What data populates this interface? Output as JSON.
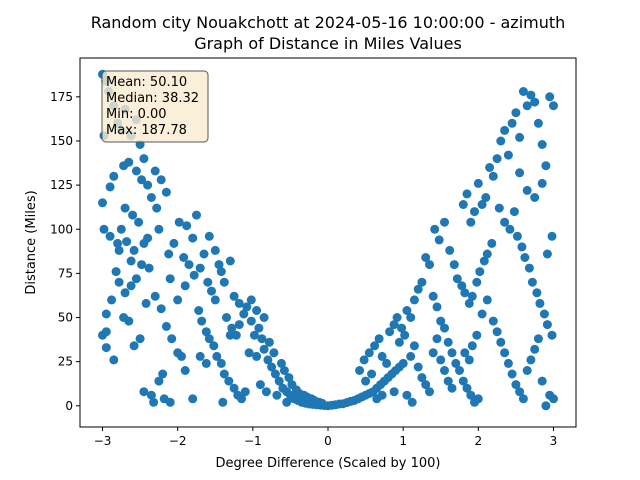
{
  "chart_data": {
    "type": "scatter",
    "title_line1": "Random city Nouakchott at 2024-05-16 10:00:00  - azimuth",
    "title_line2": "Graph of Distance in Miles Values",
    "xlabel": "Degree Difference (Scaled by 100)",
    "ylabel": "Distance (Miles)",
    "xlim": [
      -3.3,
      3.3
    ],
    "ylim": [
      -12,
      197
    ],
    "xticks": [
      -3,
      -2,
      -1,
      0,
      1,
      2,
      3
    ],
    "yticks": [
      0,
      25,
      50,
      75,
      100,
      125,
      150,
      175
    ],
    "marker_color": "#1f77b4",
    "stats_box": {
      "mean": "Mean: 50.10",
      "median": "Median: 38.32",
      "min": "Min: 0.00",
      "max": "Max: 187.78",
      "facecolor": "#f9ebd0"
    },
    "points": [
      [
        -3.0,
        187.78
      ],
      [
        -2.96,
        184.0
      ],
      [
        -2.98,
        153.0
      ],
      [
        -2.92,
        178.0
      ],
      [
        -2.85,
        170.0
      ],
      [
        -2.8,
        160.0
      ],
      [
        -2.75,
        156.0
      ],
      [
        -2.7,
        168.0
      ],
      [
        -2.62,
        153.0
      ],
      [
        -2.55,
        162.0
      ],
      [
        -2.5,
        148.0
      ],
      [
        -2.45,
        140.0
      ],
      [
        -3.0,
        115.0
      ],
      [
        -2.9,
        124.0
      ],
      [
        -2.85,
        130.0
      ],
      [
        -2.72,
        136.0
      ],
      [
        -2.65,
        138.0
      ],
      [
        -2.55,
        133.0
      ],
      [
        -2.48,
        128.0
      ],
      [
        -2.4,
        125.0
      ],
      [
        -2.3,
        133.0
      ],
      [
        -2.22,
        128.0
      ],
      [
        -2.15,
        121.0
      ],
      [
        -2.35,
        118.0
      ],
      [
        -2.28,
        112.0
      ],
      [
        -2.6,
        108.0
      ],
      [
        -2.52,
        104.0
      ],
      [
        -2.75,
        100.0
      ],
      [
        -2.68,
        93.0
      ],
      [
        -2.58,
        88.0
      ],
      [
        -2.45,
        92.0
      ],
      [
        -2.38,
        78.0
      ],
      [
        -2.82,
        76.0
      ],
      [
        -2.78,
        70.0
      ],
      [
        -2.7,
        64.0
      ],
      [
        -2.62,
        68.0
      ],
      [
        -2.55,
        72.0
      ],
      [
        -2.48,
        80.0
      ],
      [
        -2.42,
        58.0
      ],
      [
        -2.88,
        60.0
      ],
      [
        -2.95,
        52.0
      ],
      [
        -3.0,
        40.0
      ],
      [
        -2.95,
        33.0
      ],
      [
        -2.85,
        26.0
      ],
      [
        -2.72,
        50.0
      ],
      [
        -2.65,
        48.0
      ],
      [
        -2.58,
        34.0
      ],
      [
        -2.5,
        38.0
      ],
      [
        -2.45,
        8.0
      ],
      [
        -2.35,
        6.0
      ],
      [
        -2.32,
        2.0
      ],
      [
        -2.25,
        14.0
      ],
      [
        -2.2,
        18.0
      ],
      [
        -2.18,
        4.0
      ],
      [
        -2.1,
        2.0
      ],
      [
        -2.3,
        62.0
      ],
      [
        -2.22,
        55.0
      ],
      [
        -2.15,
        45.0
      ],
      [
        -2.08,
        38.0
      ],
      [
        -2.0,
        30.0
      ],
      [
        -1.95,
        28.0
      ],
      [
        -1.9,
        20.0
      ],
      [
        -2.12,
        86.0
      ],
      [
        -2.05,
        92.0
      ],
      [
        -1.98,
        104.0
      ],
      [
        -1.88,
        102.0
      ],
      [
        -1.8,
        95.0
      ],
      [
        -1.75,
        108.0
      ],
      [
        -1.92,
        84.0
      ],
      [
        -1.85,
        80.0
      ],
      [
        -1.78,
        74.0
      ],
      [
        -1.7,
        78.0
      ],
      [
        -1.65,
        86.0
      ],
      [
        -1.6,
        70.0
      ],
      [
        -1.55,
        65.0
      ],
      [
        -1.5,
        60.0
      ],
      [
        -1.45,
        80.0
      ],
      [
        -1.38,
        70.0
      ],
      [
        -1.3,
        82.0
      ],
      [
        -1.72,
        54.0
      ],
      [
        -1.68,
        48.0
      ],
      [
        -1.62,
        42.0
      ],
      [
        -1.58,
        38.0
      ],
      [
        -1.52,
        34.0
      ],
      [
        -1.48,
        28.0
      ],
      [
        -1.42,
        24.0
      ],
      [
        -1.38,
        18.0
      ],
      [
        -1.32,
        14.0
      ],
      [
        -1.25,
        10.0
      ],
      [
        -1.2,
        6.0
      ],
      [
        -1.15,
        4.0
      ],
      [
        -1.1,
        8.0
      ],
      [
        -1.8,
        4.0
      ],
      [
        -1.7,
        28.0
      ],
      [
        -1.62,
        24.0
      ],
      [
        -1.35,
        50.0
      ],
      [
        -1.28,
        44.0
      ],
      [
        -1.22,
        40.0
      ],
      [
        -1.18,
        46.0
      ],
      [
        -1.12,
        52.0
      ],
      [
        -1.08,
        56.0
      ],
      [
        -1.02,
        48.0
      ],
      [
        -0.98,
        40.0
      ],
      [
        -0.92,
        44.0
      ],
      [
        -0.88,
        38.0
      ],
      [
        -0.85,
        32.0
      ],
      [
        -0.8,
        26.0
      ],
      [
        -0.75,
        22.0
      ],
      [
        -0.7,
        18.0
      ],
      [
        -0.65,
        14.0
      ],
      [
        -0.6,
        10.0
      ],
      [
        -0.55,
        8.0
      ],
      [
        -0.5,
        6.0
      ],
      [
        -0.45,
        4.0
      ],
      [
        -0.4,
        3.0
      ],
      [
        -0.35,
        2.0
      ],
      [
        -0.3,
        1.5
      ],
      [
        -0.25,
        1.0
      ],
      [
        -0.2,
        0.8
      ],
      [
        -0.15,
        0.6
      ],
      [
        -0.1,
        0.4
      ],
      [
        -0.05,
        0.2
      ],
      [
        0.0,
        0.0
      ],
      [
        -1.05,
        30.0
      ],
      [
        -0.95,
        28.0
      ],
      [
        -0.78,
        36.0
      ],
      [
        -0.72,
        30.0
      ],
      [
        -0.62,
        24.0
      ],
      [
        -0.58,
        20.0
      ],
      [
        -0.52,
        16.0
      ],
      [
        -0.48,
        12.0
      ],
      [
        -0.42,
        9.0
      ],
      [
        -0.38,
        7.0
      ],
      [
        -0.32,
        6.0
      ],
      [
        -0.28,
        5.0
      ],
      [
        -0.22,
        4.0
      ],
      [
        -0.18,
        3.0
      ],
      [
        -0.12,
        2.0
      ],
      [
        -0.08,
        1.5
      ],
      [
        -0.9,
        12.0
      ],
      [
        -0.82,
        8.0
      ],
      [
        -0.68,
        6.0
      ],
      [
        -0.55,
        2.0
      ],
      [
        -1.4,
        2.0
      ],
      [
        -1.3,
        40.0
      ],
      [
        -2.4,
        95.0
      ],
      [
        -2.25,
        100.0
      ],
      [
        -2.62,
        82.0
      ],
      [
        -2.95,
        42.0
      ],
      [
        -2.8,
        92.0
      ],
      [
        -2.7,
        112.0
      ],
      [
        -2.1,
        72.0
      ],
      [
        -2.0,
        60.0
      ],
      [
        -1.9,
        68.0
      ],
      [
        0.05,
        0.3
      ],
      [
        0.1,
        0.6
      ],
      [
        0.15,
        1.0
      ],
      [
        0.2,
        1.2
      ],
      [
        0.25,
        1.8
      ],
      [
        0.3,
        2.5
      ],
      [
        0.35,
        3.0
      ],
      [
        0.4,
        4.0
      ],
      [
        0.45,
        5.0
      ],
      [
        0.5,
        6.0
      ],
      [
        0.55,
        7.0
      ],
      [
        0.6,
        8.0
      ],
      [
        0.65,
        10.0
      ],
      [
        0.7,
        12.0
      ],
      [
        0.75,
        14.0
      ],
      [
        0.8,
        16.0
      ],
      [
        0.85,
        18.0
      ],
      [
        0.9,
        20.0
      ],
      [
        0.95,
        22.0
      ],
      [
        1.0,
        24.0
      ],
      [
        0.42,
        20.0
      ],
      [
        0.48,
        26.0
      ],
      [
        0.55,
        30.0
      ],
      [
        0.62,
        34.0
      ],
      [
        0.68,
        38.0
      ],
      [
        0.72,
        28.0
      ],
      [
        0.78,
        24.0
      ],
      [
        0.82,
        42.0
      ],
      [
        0.88,
        46.0
      ],
      [
        0.92,
        50.0
      ],
      [
        0.98,
        44.0
      ],
      [
        1.02,
        40.0
      ],
      [
        1.05,
        54.0
      ],
      [
        1.1,
        50.0
      ],
      [
        1.15,
        60.0
      ],
      [
        1.2,
        66.0
      ],
      [
        1.25,
        70.0
      ],
      [
        1.3,
        84.0
      ],
      [
        1.35,
        80.0
      ],
      [
        1.4,
        62.0
      ],
      [
        1.45,
        56.0
      ],
      [
        1.5,
        48.0
      ],
      [
        1.55,
        44.0
      ],
      [
        1.6,
        36.0
      ],
      [
        1.65,
        30.0
      ],
      [
        1.7,
        24.0
      ],
      [
        1.75,
        20.0
      ],
      [
        1.8,
        14.0
      ],
      [
        1.85,
        10.0
      ],
      [
        1.9,
        6.0
      ],
      [
        1.95,
        2.0
      ],
      [
        2.0,
        4.0
      ],
      [
        1.42,
        100.0
      ],
      [
        1.48,
        94.0
      ],
      [
        1.55,
        104.0
      ],
      [
        1.62,
        88.0
      ],
      [
        1.68,
        80.0
      ],
      [
        1.72,
        72.0
      ],
      [
        1.78,
        68.0
      ],
      [
        1.82,
        64.0
      ],
      [
        1.88,
        58.0
      ],
      [
        1.92,
        62.0
      ],
      [
        1.98,
        70.0
      ],
      [
        2.02,
        76.0
      ],
      [
        2.08,
        82.0
      ],
      [
        2.12,
        86.0
      ],
      [
        2.18,
        92.0
      ],
      [
        1.8,
        114.0
      ],
      [
        1.85,
        120.0
      ],
      [
        1.9,
        104.0
      ],
      [
        1.95,
        110.0
      ],
      [
        2.0,
        126.0
      ],
      [
        2.05,
        114.0
      ],
      [
        2.1,
        118.0
      ],
      [
        2.15,
        135.0
      ],
      [
        2.2,
        130.0
      ],
      [
        2.25,
        140.0
      ],
      [
        2.3,
        150.0
      ],
      [
        2.35,
        156.0
      ],
      [
        2.4,
        142.0
      ],
      [
        2.45,
        160.0
      ],
      [
        2.5,
        166.0
      ],
      [
        2.55,
        152.0
      ],
      [
        2.6,
        178.0
      ],
      [
        2.65,
        170.0
      ],
      [
        2.7,
        176.0
      ],
      [
        2.75,
        172.0
      ],
      [
        2.8,
        160.0
      ],
      [
        2.85,
        148.0
      ],
      [
        2.9,
        136.0
      ],
      [
        2.95,
        175.0
      ],
      [
        3.0,
        170.0
      ],
      [
        2.28,
        112.0
      ],
      [
        2.35,
        104.0
      ],
      [
        2.42,
        100.0
      ],
      [
        2.48,
        110.0
      ],
      [
        2.52,
        96.0
      ],
      [
        2.58,
        90.0
      ],
      [
        2.62,
        84.0
      ],
      [
        2.68,
        78.0
      ],
      [
        2.72,
        70.0
      ],
      [
        2.78,
        64.0
      ],
      [
        2.82,
        58.0
      ],
      [
        2.88,
        52.0
      ],
      [
        2.92,
        46.0
      ],
      [
        2.98,
        40.0
      ],
      [
        2.2,
        48.0
      ],
      [
        2.25,
        42.0
      ],
      [
        2.3,
        36.0
      ],
      [
        2.35,
        30.0
      ],
      [
        2.4,
        24.0
      ],
      [
        2.45,
        18.0
      ],
      [
        2.5,
        12.0
      ],
      [
        2.55,
        8.0
      ],
      [
        2.6,
        4.0
      ],
      [
        2.65,
        20.0
      ],
      [
        2.7,
        26.0
      ],
      [
        2.75,
        32.0
      ],
      [
        2.8,
        38.0
      ],
      [
        2.85,
        14.0
      ],
      [
        2.9,
        0.0
      ],
      [
        2.95,
        6.0
      ],
      [
        3.0,
        4.0
      ],
      [
        1.1,
        28.0
      ],
      [
        1.15,
        34.0
      ],
      [
        1.2,
        22.0
      ],
      [
        1.25,
        16.0
      ],
      [
        1.3,
        12.0
      ],
      [
        1.35,
        8.0
      ],
      [
        1.4,
        30.0
      ],
      [
        1.45,
        38.0
      ],
      [
        1.5,
        26.0
      ],
      [
        1.55,
        20.0
      ],
      [
        1.6,
        14.0
      ],
      [
        1.65,
        10.0
      ],
      [
        0.5,
        14.0
      ],
      [
        0.58,
        18.0
      ],
      [
        0.65,
        4.0
      ],
      [
        0.72,
        6.0
      ],
      [
        0.88,
        8.0
      ],
      [
        0.95,
        36.0
      ],
      [
        1.05,
        6.0
      ],
      [
        1.12,
        2.0
      ],
      [
        2.55,
        132.0
      ],
      [
        2.65,
        122.0
      ],
      [
        2.75,
        118.0
      ],
      [
        2.85,
        126.0
      ],
      [
        2.92,
        86.0
      ],
      [
        2.98,
        96.0
      ],
      [
        2.12,
        60.0
      ],
      [
        2.05,
        52.0
      ],
      [
        1.98,
        40.0
      ],
      [
        1.92,
        34.0
      ],
      [
        1.88,
        26.0
      ],
      [
        1.82,
        30.0
      ],
      [
        -2.98,
        100.0
      ],
      [
        -2.9,
        96.0
      ],
      [
        -2.78,
        88.0
      ],
      [
        -1.58,
        96.0
      ],
      [
        -1.5,
        88.0
      ],
      [
        -1.42,
        76.0
      ],
      [
        -1.25,
        62.0
      ],
      [
        -1.18,
        58.0
      ],
      [
        -1.02,
        60.0
      ],
      [
        -0.95,
        54.0
      ],
      [
        -0.85,
        50.0
      ]
    ]
  }
}
